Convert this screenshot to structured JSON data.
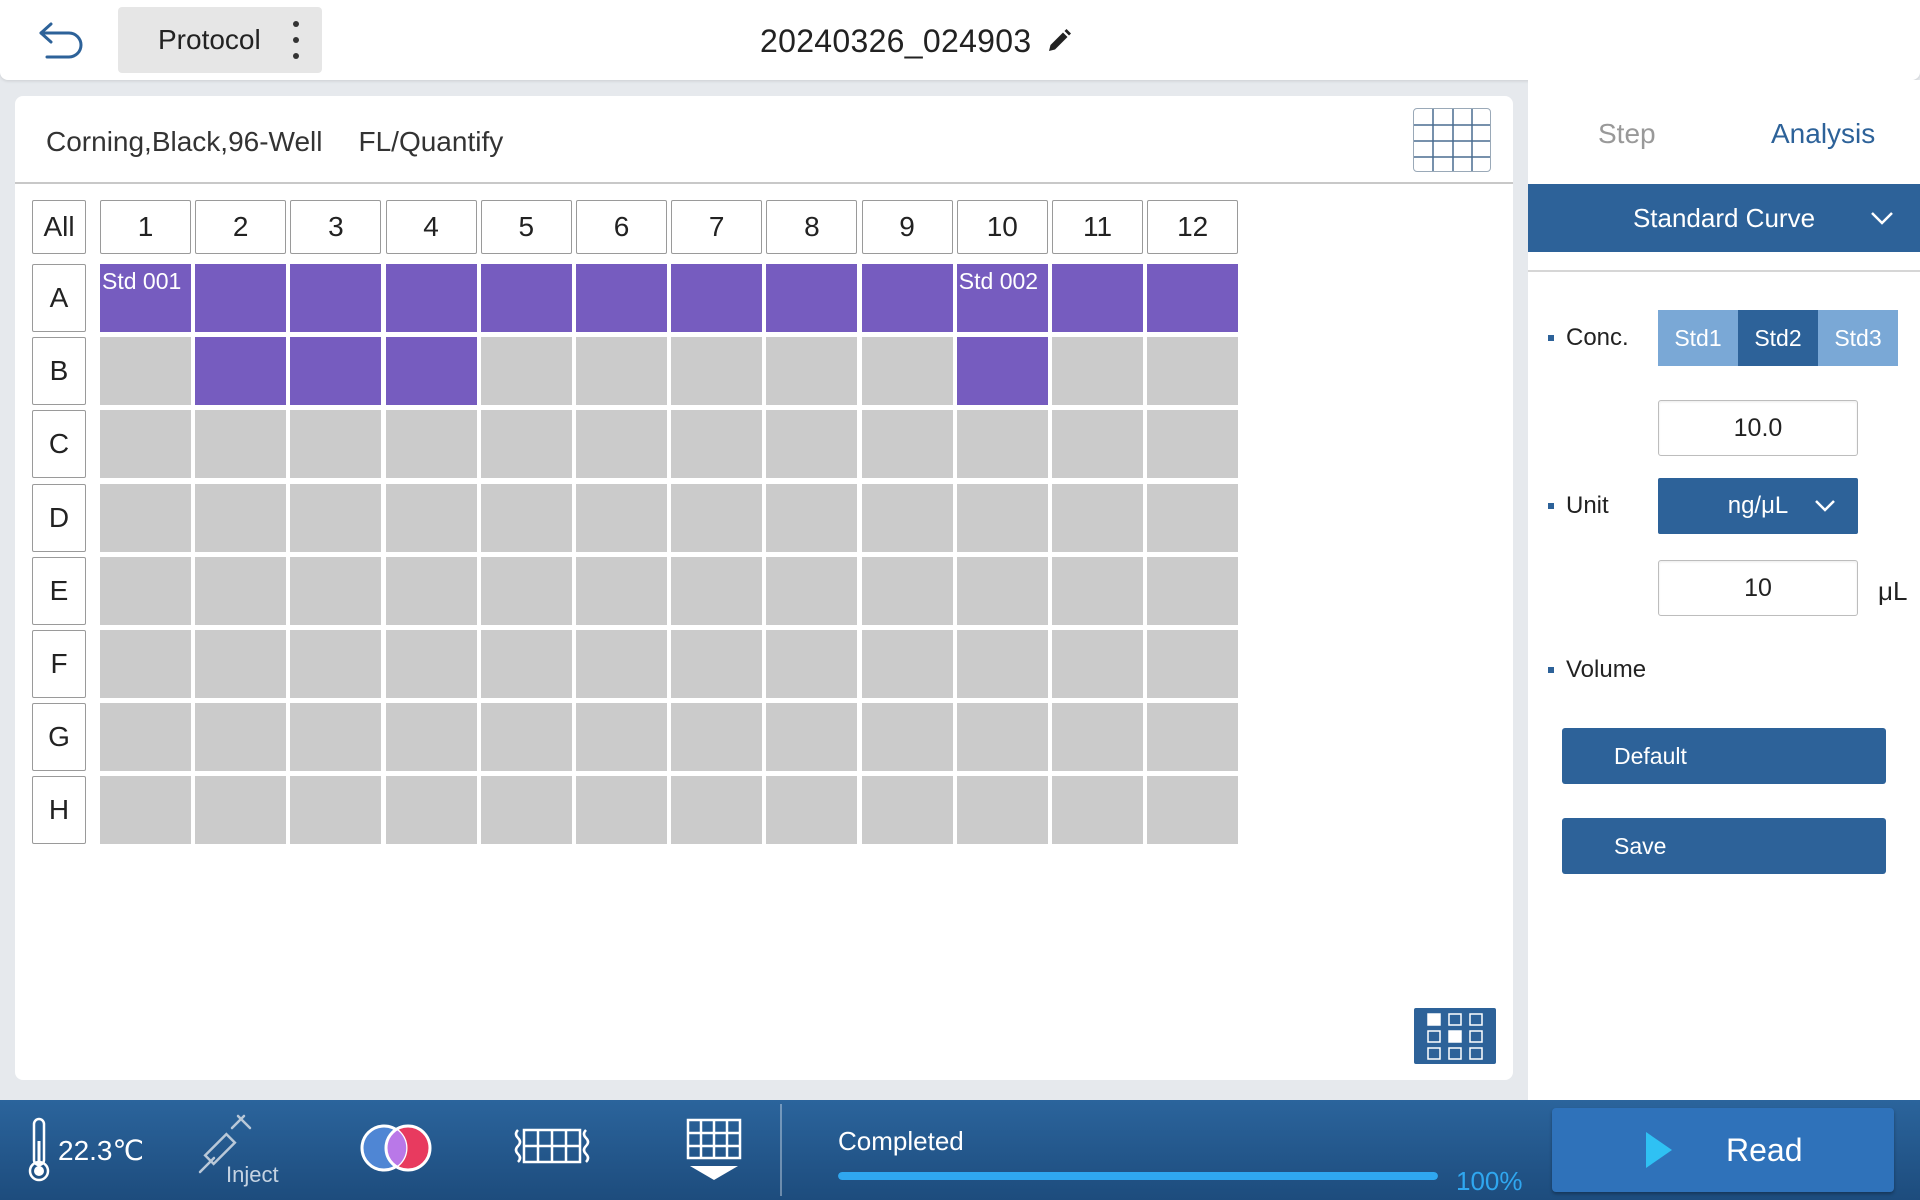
{
  "header": {
    "protocol_label": "Protocol",
    "title": "20240326_024903"
  },
  "plate": {
    "plate_type": "Corning,Black,96-Well",
    "mode": "FL/Quantify",
    "all_label": "All",
    "columns": [
      "1",
      "2",
      "3",
      "4",
      "5",
      "6",
      "7",
      "8",
      "9",
      "10",
      "11",
      "12"
    ],
    "rows": [
      "A",
      "B",
      "C",
      "D",
      "E",
      "F",
      "G",
      "H"
    ],
    "filled_wells": [
      "A1",
      "A2",
      "A3",
      "A4",
      "A5",
      "A6",
      "A7",
      "A8",
      "A9",
      "A10",
      "A11",
      "A12",
      "B2",
      "B3",
      "B4",
      "B10"
    ],
    "well_labels": {
      "A1": "Std 001",
      "A10": "Std 002"
    },
    "filled_color": "#765cbf",
    "empty_color": "#cbcbcb"
  },
  "right_panel": {
    "tabs": [
      {
        "label": "Step",
        "active": false
      },
      {
        "label": "Analysis",
        "active": true
      }
    ],
    "analysis_type": "Standard Curve",
    "conc_label": "Conc.",
    "std_options": [
      {
        "label": "Std1",
        "active": false
      },
      {
        "label": "Std2",
        "active": true
      },
      {
        "label": "Std3",
        "active": false
      }
    ],
    "conc_value": "10.0",
    "unit_label": "Unit",
    "unit_value": "ng/μL",
    "volume_label": "Volume",
    "volume_value": "10",
    "volume_unit": "μL",
    "default_label": "Default",
    "save_label": "Save"
  },
  "footer": {
    "temperature": "22.3℃",
    "inject_label": "Inject",
    "status": "Completed",
    "progress": 100,
    "progress_label": "100%",
    "read_label": "Read"
  },
  "colors": {
    "accent": "#2d6299",
    "std_inactive": "#7aa8d6",
    "progress": "#2fa7f0"
  }
}
